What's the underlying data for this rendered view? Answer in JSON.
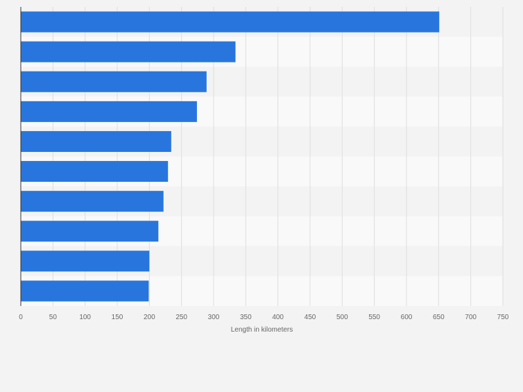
{
  "chart_data": {
    "type": "bar",
    "orientation": "horizontal",
    "categories": [
      "",
      "",
      "",
      "",
      "",
      "",
      "",
      "",
      "",
      ""
    ],
    "values": [
      651,
      334,
      289,
      274,
      234,
      229,
      222,
      214,
      200,
      199
    ],
    "xlabel": "Length in kilometers",
    "ylabel": "",
    "xlim": [
      0,
      750
    ],
    "xticks": [
      0,
      50,
      100,
      150,
      200,
      250,
      300,
      350,
      400,
      450,
      500,
      550,
      600,
      650,
      700,
      750
    ],
    "grid": true,
    "bar_color": "#2876dd"
  }
}
